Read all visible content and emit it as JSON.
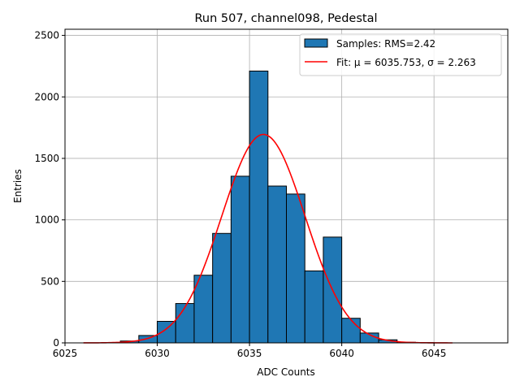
{
  "chart_data": {
    "type": "bar",
    "title": "Run 507, channel098, Pedestal",
    "xlabel": "ADC Counts",
    "ylabel": "Entries",
    "xlim": [
      6025,
      6049
    ],
    "ylim": [
      0,
      2550
    ],
    "grid": true,
    "legend_position": "top-right",
    "xticks": [
      6025,
      6030,
      6035,
      6040,
      6045
    ],
    "yticks": [
      0,
      500,
      1000,
      1500,
      2000,
      2500
    ],
    "histogram": {
      "name": "Samples: RMS=2.42",
      "color": "#1f77b4",
      "edge_color": "#000000",
      "bin_start": 6026,
      "bin_width": 1,
      "values": [
        0,
        0,
        15,
        60,
        175,
        320,
        550,
        890,
        1355,
        2210,
        1275,
        1210,
        585,
        860,
        200,
        80,
        25,
        5,
        2,
        0
      ]
    },
    "fit": {
      "name": "Fit: μ = 6035.753, σ = 2.263",
      "color": "#ff0000",
      "mu": 6035.753,
      "sigma": 2.263,
      "amplitude": 1695,
      "x_range": [
        6026,
        6046
      ]
    }
  },
  "legend": {
    "hist_label": "Samples: RMS=2.42",
    "fit_label": "Fit: μ = 6035.753, σ = 2.263"
  }
}
